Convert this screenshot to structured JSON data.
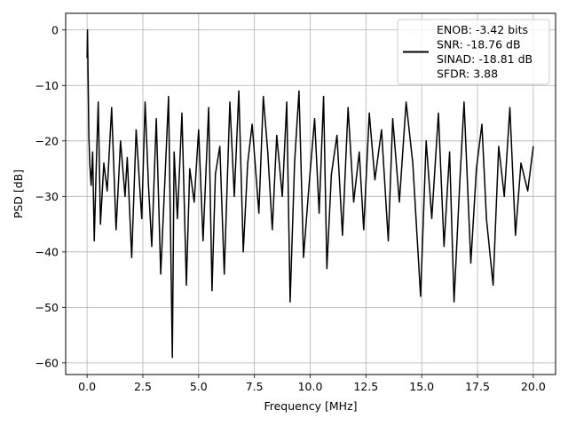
{
  "chart_data": {
    "type": "line",
    "title": "",
    "xlabel": "Frequency [MHz]",
    "ylabel": "PSD [dB]",
    "xlim": [
      -0.96,
      21.0
    ],
    "ylim": [
      -62.1,
      3.0
    ],
    "xticks": [
      0.0,
      2.5,
      5.0,
      7.5,
      10.0,
      12.5,
      15.0,
      17.5,
      20.0
    ],
    "xtick_labels": [
      "0.0",
      "2.5",
      "5.0",
      "7.5",
      "10.0",
      "12.5",
      "15.0",
      "17.5",
      "20.0"
    ],
    "yticks": [
      0,
      -10,
      -20,
      -30,
      -40,
      -50,
      -60
    ],
    "ytick_labels": [
      "0",
      "−10",
      "−20",
      "−30",
      "−40",
      "−50",
      "−60"
    ],
    "grid": true,
    "legend_position": "top-right",
    "line_color": "#000000",
    "legend": {
      "lines": [
        "ENOB: -3.42 bits",
        "SNR: -18.76 dB",
        "SINAD: -18.81 dB",
        "SFDR: 3.88"
      ]
    },
    "series": [
      {
        "x": [
          0.0,
          0.02,
          0.05,
          0.08,
          0.12,
          0.18,
          0.25,
          0.32,
          0.4,
          0.5,
          0.6,
          0.75,
          0.9,
          1.1,
          1.3,
          1.5,
          1.7,
          1.8,
          2.0,
          2.2,
          2.45,
          2.6,
          2.75,
          2.9,
          3.1,
          3.3,
          3.5,
          3.65,
          3.82,
          3.9,
          4.05,
          4.25,
          4.45,
          4.6,
          4.8,
          5.0,
          5.2,
          5.45,
          5.6,
          5.75,
          5.95,
          6.15,
          6.4,
          6.6,
          6.8,
          7.0,
          7.2,
          7.4,
          7.7,
          7.9,
          8.1,
          8.3,
          8.5,
          8.75,
          8.95,
          9.1,
          9.3,
          9.5,
          9.7,
          9.95,
          10.2,
          10.4,
          10.6,
          10.75,
          10.95,
          11.2,
          11.45,
          11.7,
          11.95,
          12.2,
          12.4,
          12.65,
          12.9,
          13.2,
          13.5,
          13.7,
          14.0,
          14.3,
          14.6,
          14.95,
          15.2,
          15.45,
          15.75,
          16.0,
          16.25,
          16.45,
          16.7,
          16.9,
          17.2,
          17.45,
          17.7,
          17.9,
          18.2,
          18.45,
          18.7,
          18.95,
          19.2,
          19.45,
          19.75,
          20.0
        ],
        "y": [
          -5,
          0,
          -10,
          -19,
          -24,
          -28,
          -22,
          -38,
          -26,
          -13,
          -35,
          -24,
          -29,
          -14,
          -36,
          -20,
          -30,
          -23,
          -41,
          -18,
          -34,
          -13,
          -28,
          -39,
          -16,
          -44,
          -26,
          -12,
          -59,
          -22,
          -34,
          -15,
          -46,
          -25,
          -31,
          -18,
          -38,
          -14,
          -47,
          -26,
          -21,
          -44,
          -13,
          -30,
          -11,
          -40,
          -24,
          -17,
          -33,
          -12,
          -22,
          -36,
          -19,
          -30,
          -13,
          -49,
          -24,
          -11,
          -41,
          -28,
          -16,
          -33,
          -12,
          -43,
          -26,
          -19,
          -37,
          -14,
          -31,
          -22,
          -36,
          -15,
          -27,
          -18,
          -38,
          -16,
          -31,
          -13,
          -24,
          -48,
          -20,
          -34,
          -15,
          -39,
          -22,
          -49,
          -28,
          -13,
          -42,
          -25,
          -17,
          -34,
          -46,
          -21,
          -30,
          -14,
          -37,
          -24,
          -29,
          -21
        ]
      }
    ]
  }
}
